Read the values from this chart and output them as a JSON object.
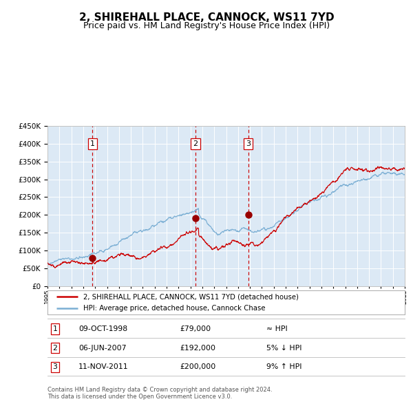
{
  "title": "2, SHIREHALL PLACE, CANNOCK, WS11 7YD",
  "subtitle": "Price paid vs. HM Land Registry's House Price Index (HPI)",
  "legend_line1": "2, SHIREHALL PLACE, CANNOCK, WS11 7YD (detached house)",
  "legend_line2": "HPI: Average price, detached house, Cannock Chase",
  "footer1": "Contains HM Land Registry data © Crown copyright and database right 2024.",
  "footer2": "This data is licensed under the Open Government Licence v3.0.",
  "table": [
    {
      "num": "1",
      "date": "09-OCT-1998",
      "price": "£79,000",
      "rel": "≈ HPI"
    },
    {
      "num": "2",
      "date": "06-JUN-2007",
      "price": "£192,000",
      "rel": "5% ↓ HPI"
    },
    {
      "num": "3",
      "date": "11-NOV-2011",
      "price": "£200,000",
      "rel": "9% ↑ HPI"
    }
  ],
  "sale_points": [
    {
      "year": 1998.77,
      "value": 79000
    },
    {
      "year": 2007.43,
      "value": 192000
    },
    {
      "year": 2011.86,
      "value": 200000
    }
  ],
  "vline_years": [
    1998.77,
    2007.43,
    2011.86
  ],
  "box_labels": [
    "1",
    "2",
    "3"
  ],
  "ylim": [
    0,
    450000
  ],
  "xlim_start": 1995,
  "xlim_end": 2025,
  "hpi_color": "#7bafd4",
  "price_color": "#cc0000",
  "bg_color": "#dce9f5",
  "grid_color": "#ffffff",
  "vline_color": "#cc0000",
  "marker_color": "#990000",
  "title_fontsize": 11,
  "subtitle_fontsize": 9
}
